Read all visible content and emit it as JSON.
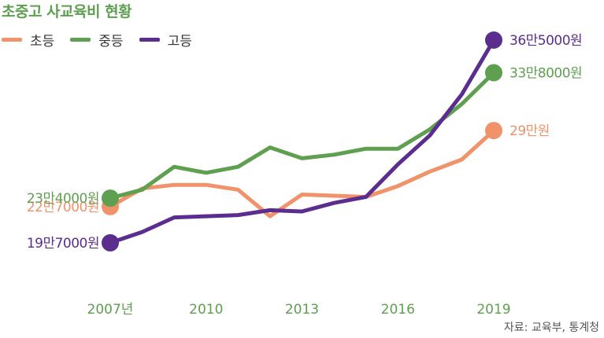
{
  "chart_data": {
    "type": "line",
    "title": "초중고 사교육비 현황",
    "x": [
      2007,
      2008,
      2009,
      2010,
      2011,
      2012,
      2013,
      2014,
      2015,
      2016,
      2017,
      2018,
      2019
    ],
    "x_tick_labels": [
      {
        "x": 2007,
        "label": "2007년"
      },
      {
        "x": 2010,
        "label": "2010"
      },
      {
        "x": 2013,
        "label": "2013"
      },
      {
        "x": 2016,
        "label": "2016"
      },
      {
        "x": 2019,
        "label": "2019"
      }
    ],
    "ylim": [
      15,
      38
    ],
    "grid": false,
    "legend_position": "top-left",
    "series": [
      {
        "name": "초등",
        "color": "#f0926a",
        "values": [
          22.7,
          24.2,
          24.5,
          24.5,
          24.1,
          21.9,
          23.7,
          23.6,
          23.5,
          24.4,
          25.6,
          26.6,
          29.0
        ],
        "labels": [
          {
            "index": 0,
            "text": "22만7000원"
          },
          {
            "index": 12,
            "text": "29만원"
          }
        ]
      },
      {
        "name": "중등",
        "color": "#5ea04f",
        "values": [
          23.4,
          24.1,
          26.0,
          25.5,
          26.0,
          27.6,
          26.7,
          27.0,
          27.5,
          27.5,
          29.1,
          31.2,
          33.8
        ],
        "labels": [
          {
            "index": 0,
            "text": "23만4000원"
          },
          {
            "index": 12,
            "text": "33만8000원"
          }
        ]
      },
      {
        "name": "고등",
        "color": "#5b2d8e",
        "values": [
          19.7,
          20.6,
          21.8,
          21.9,
          22.0,
          22.4,
          22.3,
          23.0,
          23.5,
          26.2,
          28.6,
          32.0,
          36.5
        ],
        "labels": [
          {
            "index": 0,
            "text": "19만7000원"
          },
          {
            "index": 12,
            "text": "36만5000원"
          }
        ]
      }
    ]
  },
  "source": "자료: 교육부, 통계청"
}
